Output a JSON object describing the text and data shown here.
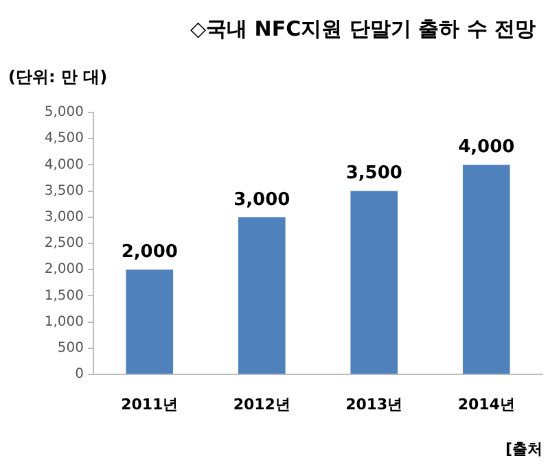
{
  "chart_data": {
    "type": "bar",
    "title": "◇국내 NFC지원 단말기 출하 수 전망",
    "ylabel": "(단위: 만 대)",
    "annotations": [
      "[출처"
    ],
    "categories": [
      "2011년",
      "2012년",
      "2013년",
      "2014년"
    ],
    "values": [
      2000,
      3000,
      3500,
      4000
    ],
    "value_labels": [
      "2,000",
      "3,000",
      "3,500",
      "4,000"
    ],
    "color": "#4f81bd",
    "ylim": [
      0,
      5000
    ],
    "yticks": [
      0,
      500,
      {
        "value": 1000,
        "label": "1,000"
      },
      {
        "value": 1500,
        "label": "1,500"
      },
      {
        "value": 2000,
        "label": "2,000"
      },
      {
        "value": 2500,
        "label": "2,500"
      },
      {
        "value": 3000,
        "label": "3,000"
      },
      {
        "value": 3500,
        "label": "3,500"
      },
      {
        "value": 4000,
        "label": "4,000"
      },
      {
        "value": 4500,
        "label": "4,500"
      },
      {
        "value": 5000,
        "label": "5,000"
      }
    ],
    "grid": false,
    "legend": false
  }
}
